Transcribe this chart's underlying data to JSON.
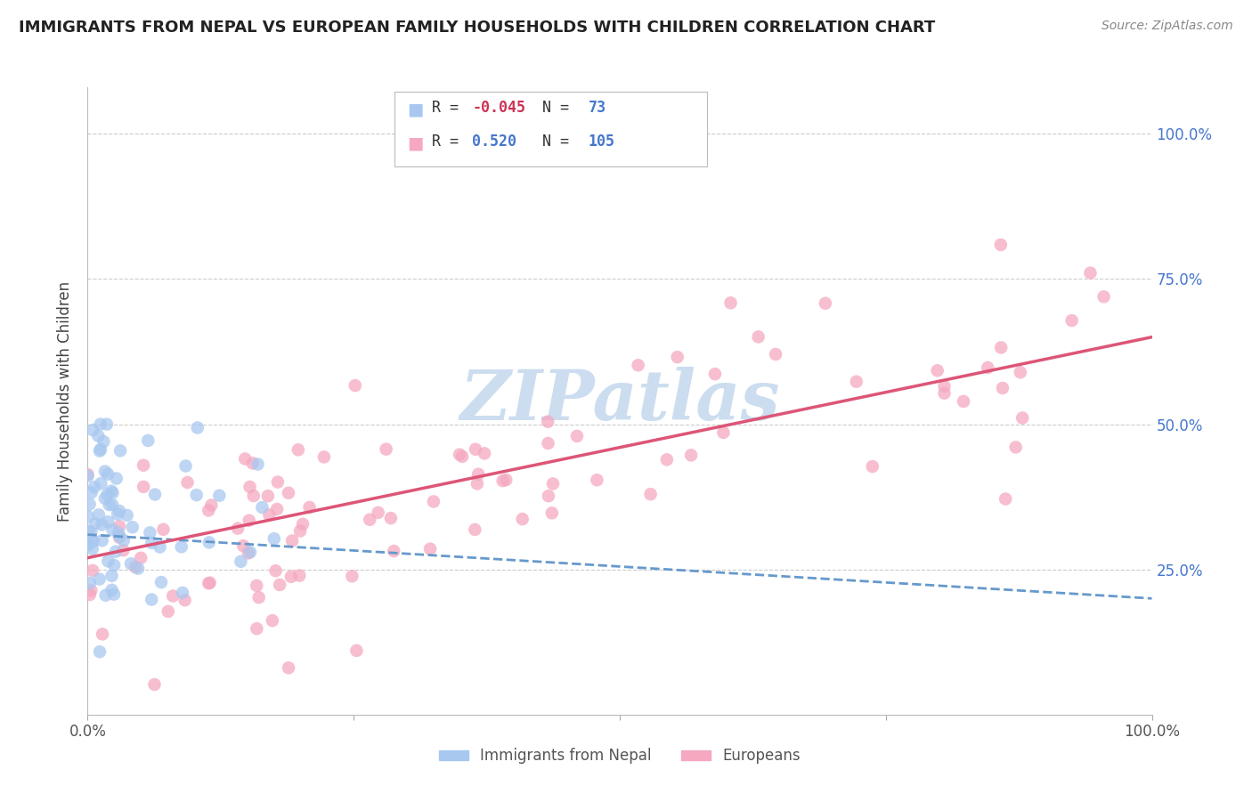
{
  "title": "IMMIGRANTS FROM NEPAL VS EUROPEAN FAMILY HOUSEHOLDS WITH CHILDREN CORRELATION CHART",
  "source": "Source: ZipAtlas.com",
  "ylabel": "Family Households with Children",
  "nepal_color": "#a8c8f0",
  "europe_color": "#f5a8c0",
  "nepal_line_color": "#6699cc",
  "europe_line_color": "#dd5577",
  "watermark": "ZIPatlas",
  "watermark_color": "#ccddf0",
  "nepal_R": -0.045,
  "nepal_N": 73,
  "europe_R": 0.52,
  "europe_N": 105,
  "xlim": [
    0.0,
    1.0
  ],
  "ylim": [
    0.0,
    1.08
  ],
  "background_color": "#ffffff",
  "grid_color": "#cccccc",
  "nepal_line_start_y": 0.31,
  "nepal_line_end_y": 0.2,
  "europe_line_start_y": 0.27,
  "europe_line_end_y": 0.65
}
